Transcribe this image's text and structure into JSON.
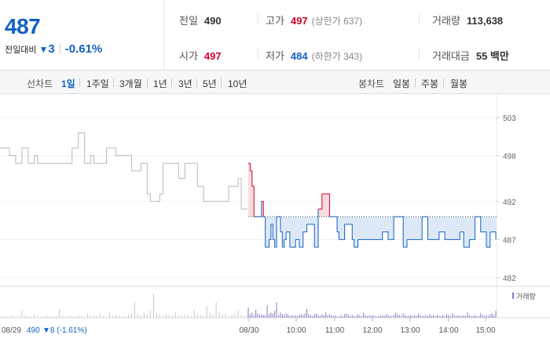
{
  "quote": {
    "price": "487",
    "change_label": "전일대비",
    "change_icon": "down-triangle-icon",
    "change_amount": "3",
    "change_rate": "-0.61%",
    "prev_close": {
      "label": "전일",
      "value": "490"
    },
    "open": {
      "label": "시가",
      "value": "497"
    },
    "high": {
      "label": "고가",
      "value": "497",
      "sub": "(상한가 637)"
    },
    "low": {
      "label": "저가",
      "value": "484",
      "sub": "(하한가 343)"
    },
    "volume": {
      "label": "거래량",
      "value": "113,638"
    },
    "amount": {
      "label": "거래대금",
      "value": "55 백만"
    }
  },
  "tabs": {
    "line_title": "선차트",
    "line_items": [
      "1일",
      "1주일",
      "3개월",
      "1년",
      "3년",
      "5년",
      "10년"
    ],
    "line_active": 0,
    "candle_title": "봉차트",
    "candle_items": [
      "일봉",
      "주봉",
      "월봉"
    ]
  },
  "colors": {
    "up": "#d8002a",
    "down": "#1261c4",
    "prev": "#b9b9b9",
    "vol": "#8f74c0",
    "volprev": "#c8c8c8"
  },
  "chart_data": {
    "type": "line",
    "y_ticks": [
      "503",
      "498",
      "492",
      "487",
      "482"
    ],
    "ylim": [
      481.5,
      505
    ],
    "baseline": 490,
    "volume_legend": "거래량",
    "x_labels": [
      "08/29",
      "08/30",
      "10:00",
      "11:00",
      "12:00",
      "13:00",
      "14:00",
      "15:00"
    ],
    "prev_day_label": "08/29",
    "prev_day_close": "490",
    "prev_day_change": "▼8 (-1.61%)",
    "prev_day_series": [
      499,
      499,
      499,
      498,
      498,
      497,
      497,
      499,
      499,
      497,
      497,
      498,
      497,
      497,
      497,
      497,
      497,
      497,
      497,
      497,
      497,
      497,
      497,
      499,
      499,
      501,
      501,
      497,
      497,
      498,
      497,
      497,
      497,
      497,
      499,
      499,
      499,
      498,
      498,
      498,
      498,
      498,
      496,
      496,
      496,
      497,
      497,
      493,
      492,
      492,
      492,
      493,
      497,
      497,
      497,
      497,
      497,
      495,
      495,
      497,
      497,
      497,
      497,
      494,
      494,
      492,
      492,
      492,
      492,
      492,
      492,
      492,
      492,
      494,
      494,
      494,
      495,
      491,
      491,
      491
    ],
    "today_series": [
      497,
      496,
      494,
      490,
      490,
      490,
      490,
      492,
      490,
      486,
      486,
      487,
      489,
      487,
      486,
      490,
      490,
      488,
      486,
      487,
      488,
      488,
      486,
      486,
      486,
      487,
      487,
      486,
      486,
      488,
      488,
      489,
      489,
      489,
      489,
      486,
      486,
      491,
      491,
      493,
      493,
      493,
      493,
      490,
      490,
      490,
      490,
      488,
      487,
      487,
      487,
      489,
      489,
      489,
      489,
      487,
      486,
      486,
      487,
      487,
      487,
      487,
      487,
      487,
      487,
      487,
      487,
      487,
      487,
      487,
      487,
      488,
      488,
      488,
      487,
      487,
      487,
      490,
      490,
      490,
      490,
      490,
      486,
      486,
      487,
      487,
      487,
      487,
      487,
      487,
      487,
      487,
      490,
      490,
      490,
      487,
      487,
      487,
      487,
      487,
      487,
      488,
      488,
      488,
      487,
      487,
      487,
      487,
      487,
      487,
      487,
      487,
      488,
      488,
      486,
      486,
      486,
      487,
      487,
      487,
      490,
      490,
      490,
      488,
      488,
      488,
      486,
      486,
      488,
      488,
      488,
      487
    ],
    "prev_day_volume": [
      2,
      1,
      2,
      1,
      3,
      1,
      2,
      8,
      3,
      2,
      1,
      4,
      2,
      1,
      2,
      3,
      2,
      1,
      2,
      10,
      3,
      1,
      2,
      2,
      1,
      3,
      2,
      1,
      5,
      2,
      3,
      2,
      4,
      2,
      1,
      6,
      2,
      3,
      2,
      1,
      2,
      3,
      5,
      18,
      4,
      2,
      6,
      3,
      8,
      28,
      6,
      3,
      2,
      4,
      3,
      2,
      7,
      3,
      2,
      4,
      3,
      2,
      9,
      4,
      3,
      2,
      14,
      6,
      4,
      18,
      6,
      4,
      5,
      2,
      3,
      4,
      8,
      3,
      2,
      3
    ],
    "today_volume": [
      12,
      4,
      6,
      3,
      9,
      5,
      3,
      4,
      3,
      3,
      14,
      4,
      6,
      5,
      8,
      18,
      3,
      6,
      4,
      3,
      5,
      4,
      2,
      3,
      2,
      3,
      2,
      3,
      4,
      3,
      5,
      10,
      4,
      3,
      2,
      4,
      5,
      3,
      2,
      4,
      3,
      6,
      3,
      4,
      3,
      2,
      3,
      2,
      1,
      3,
      2,
      4,
      5,
      3,
      2,
      3,
      2,
      2,
      4,
      3,
      2,
      6,
      3,
      2,
      3,
      2,
      3,
      2,
      1,
      2,
      2,
      3,
      2,
      4,
      3,
      2,
      2,
      3,
      6,
      4,
      3,
      2,
      5,
      3,
      2,
      2,
      3,
      2,
      3,
      2,
      5,
      3,
      2,
      2,
      3,
      2,
      4,
      2,
      3,
      2,
      3,
      2,
      2,
      3,
      2,
      4,
      3,
      2,
      5,
      3,
      2,
      3,
      2,
      2,
      3,
      2,
      6,
      3,
      2,
      2,
      3,
      2,
      2,
      5,
      3,
      2,
      3,
      2,
      4,
      5,
      3,
      8
    ]
  }
}
